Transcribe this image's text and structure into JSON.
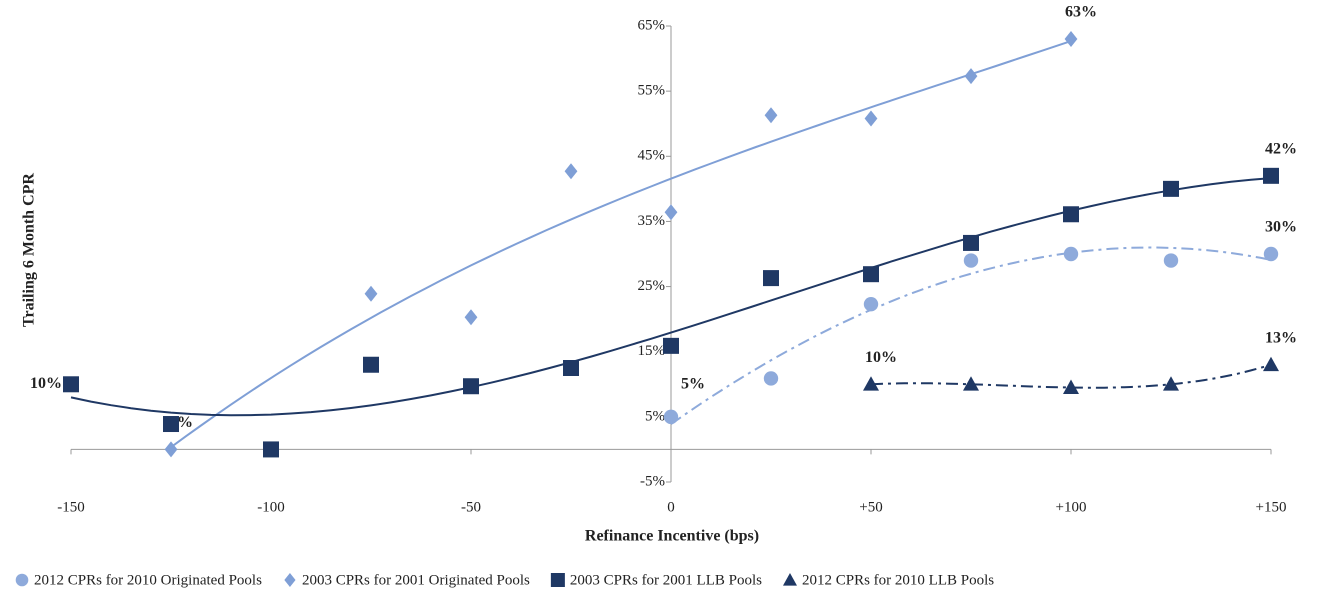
{
  "chart_data": {
    "type": "scatter",
    "xlabel": "Refinance Incentive (bps)",
    "ylabel": "Trailing 6 Month CPR",
    "xlim": [
      -150,
      150
    ],
    "xticks": [
      -150,
      -100,
      -50,
      0,
      {
        "value": 50,
        "label": "+50"
      },
      {
        "value": 100,
        "label": "+100"
      },
      {
        "value": 150,
        "label": "+150"
      }
    ],
    "ylim": [
      -5,
      65
    ],
    "yticks": [
      {
        "value": -5,
        "label": "-5%"
      },
      {
        "value": 5,
        "label": "5%"
      },
      {
        "value": 15,
        "label": "15%"
      },
      {
        "value": 25,
        "label": "25%"
      },
      {
        "value": 35,
        "label": "35%"
      },
      {
        "value": 45,
        "label": "45%"
      },
      {
        "value": 55,
        "label": "55%"
      },
      {
        "value": 65,
        "label": "65%"
      }
    ],
    "series": [
      {
        "name": "2012 CPRs for 2010 Originated Pools",
        "color": "#8eaadb",
        "marker": "circle",
        "trend": "dashdot",
        "x": [
          0,
          25,
          50,
          75,
          100,
          125,
          150
        ],
        "values": [
          5,
          10.9,
          22.3,
          29,
          30,
          29,
          30
        ],
        "value_labels": [
          "5%",
          null,
          null,
          null,
          null,
          null,
          "30%"
        ]
      },
      {
        "name": "2003 CPRs for 2001 Originated Pools",
        "color": "#7f9fd6",
        "marker": "diamond",
        "trend": "solid",
        "x": [
          -125,
          -75,
          -50,
          -25,
          0,
          25,
          50,
          75,
          100
        ],
        "values": [
          0,
          23.9,
          20.3,
          42.7,
          36.4,
          51.3,
          50.8,
          57.3,
          63
        ],
        "value_labels": [
          "0%",
          null,
          null,
          null,
          null,
          null,
          null,
          null,
          "63%"
        ]
      },
      {
        "name": "2003 CPRs for 2001 LLB Pools",
        "color": "#1f3864",
        "marker": "square",
        "trend": "solid",
        "x": [
          -150,
          -125,
          -100,
          -75,
          -50,
          -25,
          0,
          25,
          50,
          75,
          100,
          125,
          150
        ],
        "values": [
          10,
          3.9,
          0,
          13,
          9.7,
          12.5,
          15.9,
          26.3,
          26.9,
          31.7,
          36.1,
          40,
          42
        ],
        "value_labels": [
          "10%",
          null,
          null,
          null,
          null,
          null,
          null,
          null,
          null,
          null,
          null,
          null,
          "42%"
        ]
      },
      {
        "name": "2012 CPRs for 2010 LLB Pools",
        "color": "#1f3864",
        "marker": "triangle",
        "trend": "dashdot",
        "x": [
          50,
          75,
          100,
          125,
          150
        ],
        "values": [
          10,
          10,
          9.5,
          10,
          13
        ],
        "value_labels": [
          "10%",
          null,
          null,
          null,
          "13%"
        ]
      }
    ]
  }
}
